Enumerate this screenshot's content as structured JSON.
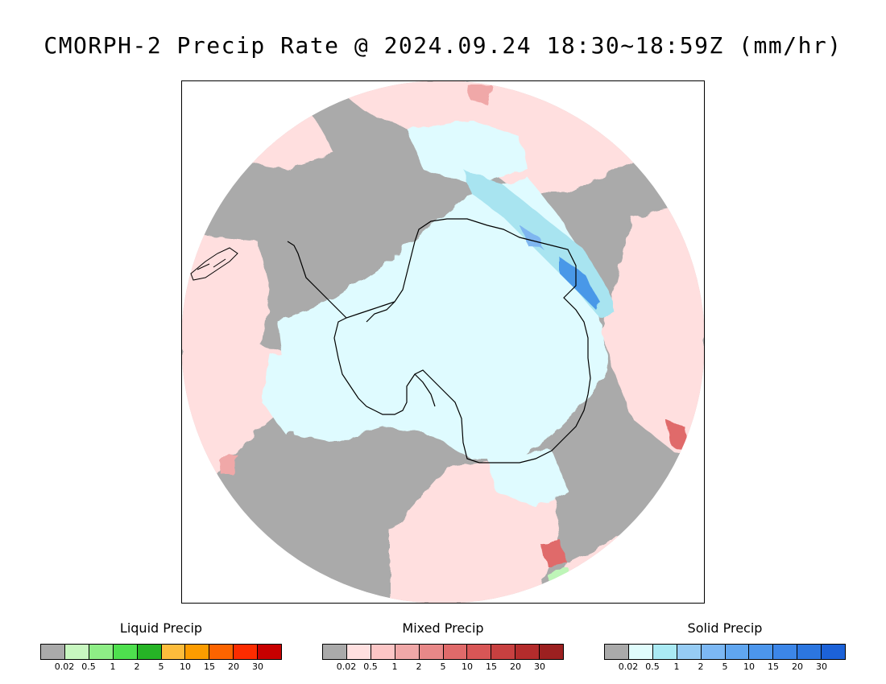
{
  "title": "CMORPH-2 Precip Rate @ 2024.09.24 18:30~18:59Z (mm/hr)",
  "map": {
    "projection": "south-polar-stereographic",
    "colors": {
      "no_precip": "#ffffff",
      "trace_gray": "#aaaaaa",
      "mixed_light": "#ffdfdf",
      "solid_light": "#dffbff",
      "solid_medium": "#a8e4f0",
      "solid_blue": "#7fb6f0",
      "solid_strong": "#4a98e8",
      "mixed_medium": "#f0a8a8",
      "mixed_strong": "#e06a6a",
      "liquid_light": "#bef5b8",
      "coastline": "#000000",
      "frame": "#000000"
    }
  },
  "legends": [
    {
      "title": "Liquid Precip",
      "colors": [
        "#aaaaaa",
        "#c8f7c0",
        "#8eee86",
        "#4ee04e",
        "#26b426",
        "#fcbc3c",
        "#fc9c00",
        "#fc6400",
        "#fc2c00",
        "#c80000"
      ],
      "ticks": [
        "0.02",
        "0.5",
        "1",
        "2",
        "5",
        "10",
        "15",
        "20",
        "30"
      ]
    },
    {
      "title": "Mixed Precip",
      "colors": [
        "#aaaaaa",
        "#ffe0e0",
        "#fcc6c6",
        "#f0a8a8",
        "#e88888",
        "#e06a6a",
        "#d85656",
        "#c84040",
        "#b42c2c",
        "#9c2020"
      ],
      "ticks": [
        "0.02",
        "0.5",
        "1",
        "2",
        "5",
        "10",
        "15",
        "20",
        "30"
      ]
    },
    {
      "title": "Solid Precip",
      "colors": [
        "#aaaaaa",
        "#e0fcfc",
        "#aaeaf4",
        "#96ccf4",
        "#7cb8f4",
        "#60a6f0",
        "#4c96ec",
        "#3c86e8",
        "#2c76e0",
        "#1c62d8"
      ],
      "ticks": [
        "0.02",
        "0.5",
        "1",
        "2",
        "5",
        "10",
        "15",
        "20",
        "30"
      ]
    }
  ]
}
